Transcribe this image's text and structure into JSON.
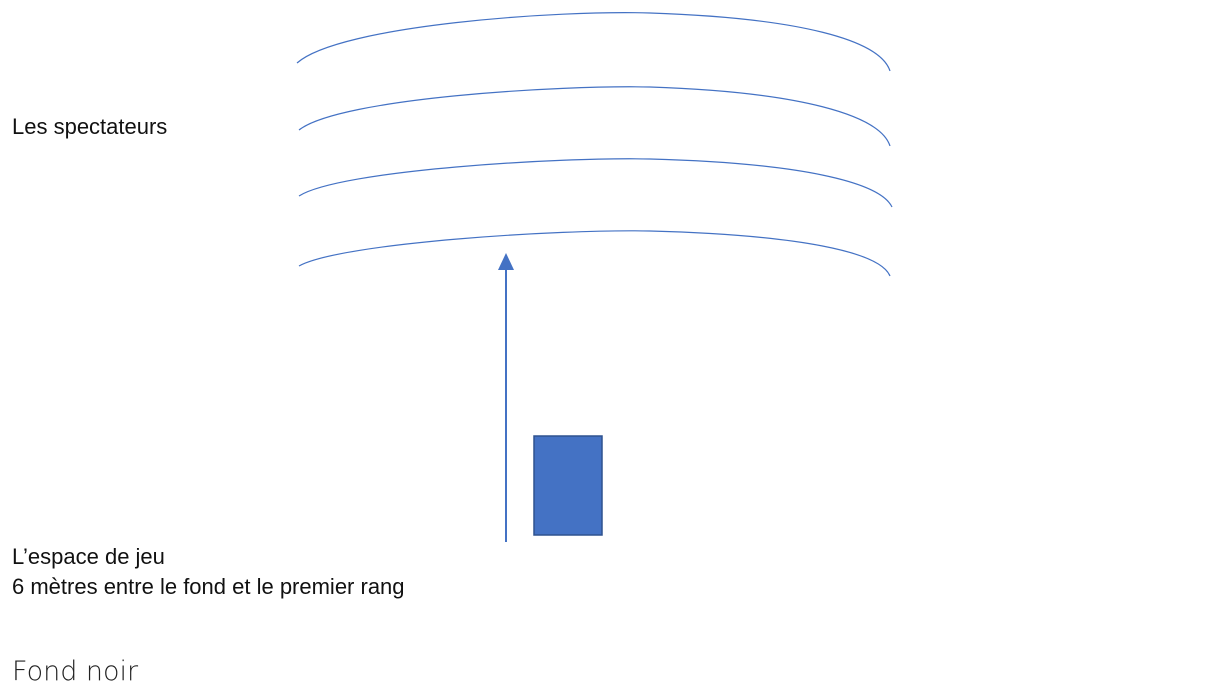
{
  "labels": {
    "spectators": "Les spectateurs",
    "play_space": "L’espace de jeu",
    "distance_note": "6 mètres entre le fond et le premier rang",
    "backdrop": "Fond noir"
  },
  "diagram": {
    "audience_row_count": 4,
    "audience_row_icon": "curved-row-line",
    "arrow_icon": "up-arrow",
    "performer_icon": "filled-rectangle",
    "colors": {
      "row_stroke": "#4472C4",
      "arrow": "#4472C4",
      "performer_fill": "#4472C4",
      "performer_stroke": "#2F528F"
    }
  }
}
